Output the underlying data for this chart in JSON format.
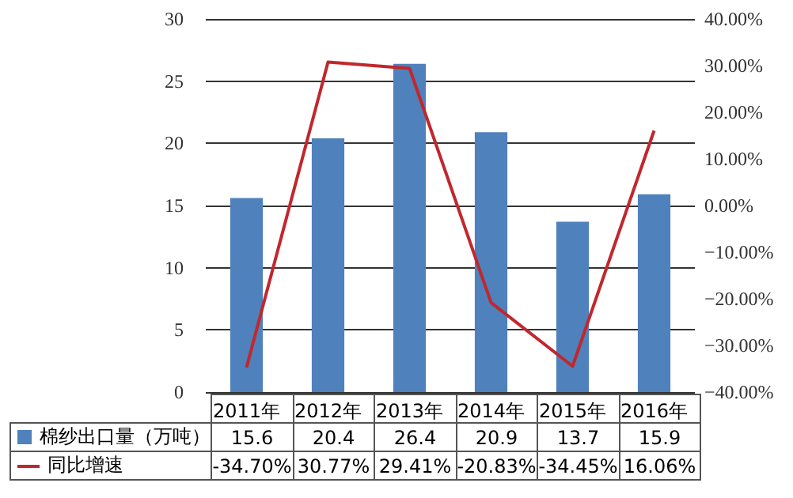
{
  "chart_data": {
    "type": "bar",
    "categories": [
      "2011年",
      "2012年",
      "2013年",
      "2014年",
      "2015年",
      "2016年"
    ],
    "series": [
      {
        "name": "棉纱出口量（万吨）",
        "color": "#4f81bd",
        "values": [
          15.6,
          20.4,
          26.4,
          20.9,
          13.7,
          15.9
        ],
        "value_labels": [
          "15.6",
          "20.4",
          "26.4",
          "20.9",
          "13.7",
          "15.9"
        ]
      },
      {
        "name": "同比增速",
        "type": "line",
        "axis": "y2",
        "color": "#c0282d",
        "values": [
          -34.7,
          30.77,
          29.41,
          -20.83,
          -34.45,
          16.06
        ],
        "value_labels": [
          "-34.70%",
          "30.77%",
          "29.41%",
          "-20.83%",
          "-34.45%",
          "16.06%"
        ]
      }
    ],
    "ylim": [
      0,
      30
    ],
    "yticks": [
      0,
      5,
      10,
      15,
      20,
      25,
      30
    ],
    "y2lim": [
      -40,
      40
    ],
    "y2ticks": [
      {
        "value": -40,
        "label": "−40.00%"
      },
      {
        "value": -30,
        "label": "−30.00%"
      },
      {
        "value": -20,
        "label": "−20.00%"
      },
      {
        "value": -10,
        "label": "−10.00%"
      },
      {
        "value": 0,
        "label": "0.00%"
      },
      {
        "value": 10,
        "label": "10.00%"
      },
      {
        "value": 20,
        "label": "20.00%"
      },
      {
        "value": 30,
        "label": "30.00%"
      },
      {
        "value": 40,
        "label": "40.00%"
      }
    ],
    "grid": "y",
    "legend": "bottom",
    "marker": "none",
    "line_style": "solid"
  }
}
